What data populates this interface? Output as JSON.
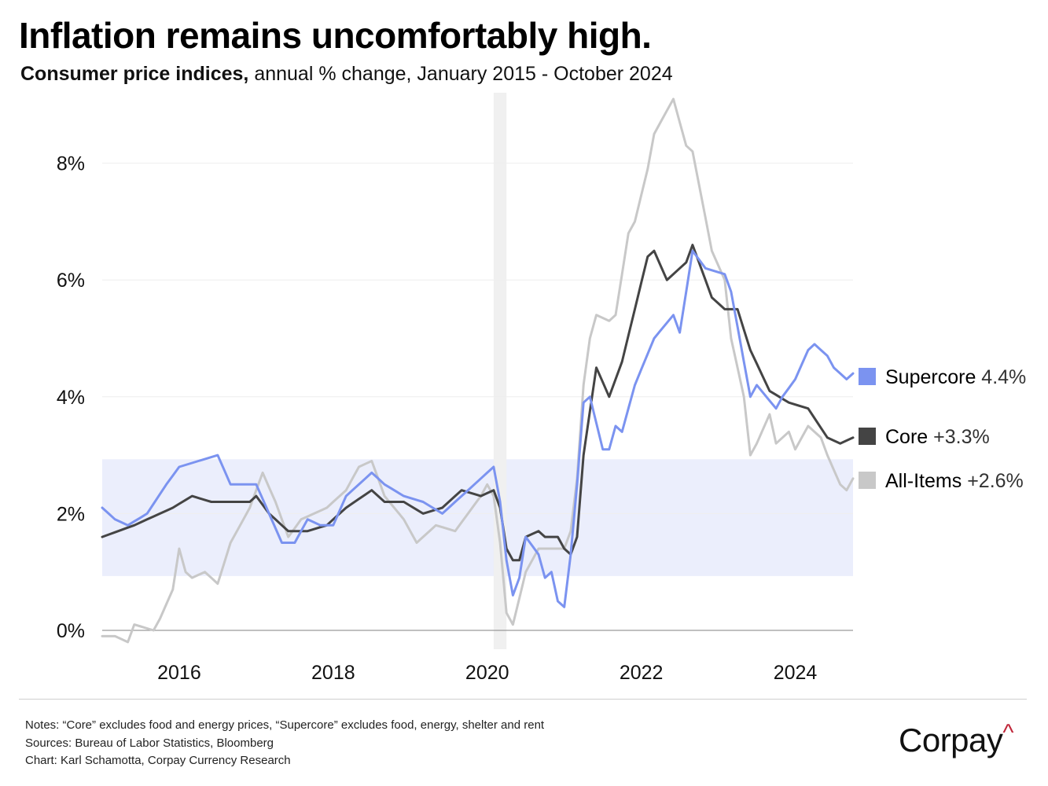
{
  "title": "Inflation remains uncomfortably high.",
  "subtitle": {
    "lead": "Consumer price indices,",
    "rest": " annual % change, January 2015 - October 2024"
  },
  "colors": {
    "supercore": "#7b93f0",
    "core": "#444444",
    "all_items": "#c8c8c8",
    "band": "#ebeefc",
    "recession": "#f0f0f0",
    "brand_accent": "#c0273a"
  },
  "legend": [
    {
      "name": "Supercore",
      "value": "4.4%",
      "color": "#7b93f0"
    },
    {
      "name": "Core",
      "value": "+3.3%",
      "color": "#444444"
    },
    {
      "name": "All-Items",
      "value": "+2.6%",
      "color": "#c8c8c8"
    }
  ],
  "notes": {
    "line1": "Notes: “Core” excludes food and energy prices, “Supercore” excludes food, energy, shelter and rent",
    "line2": "Sources: Bureau of Labor Statistics, Bloomberg",
    "line3": "Chart: Karl Schamotta, Corpay Currency Research"
  },
  "brand": {
    "name": "Corpay",
    "mark": "^"
  },
  "chart_data": {
    "type": "line",
    "x_start": "2015-01",
    "x_end": "2024-10",
    "frequency": "monthly",
    "yticks": [
      0,
      2,
      4,
      6,
      8
    ],
    "ytick_labels": [
      "0%",
      "2%",
      "4%",
      "6%",
      "8%"
    ],
    "ylim": [
      -0.2,
      9.0
    ],
    "xticks": [
      2016,
      2018,
      2020,
      2022,
      2024
    ],
    "xtick_labels": [
      "2016",
      "2018",
      "2020",
      "2022",
      "2024"
    ],
    "grid": true,
    "legend_position": "right",
    "shaded_band": {
      "y_from": 0.93,
      "y_to": 2.93
    },
    "shaded_period": {
      "from": "2020-02",
      "to": "2020-04"
    },
    "series": [
      {
        "name": "Supercore",
        "anchor_points": [
          [
            "2015-01",
            2.1
          ],
          [
            "2015-03",
            1.9
          ],
          [
            "2015-05",
            1.8
          ],
          [
            "2015-08",
            2.0
          ],
          [
            "2015-11",
            2.5
          ],
          [
            "2016-01",
            2.8
          ],
          [
            "2016-04",
            2.9
          ],
          [
            "2016-07",
            3.0
          ],
          [
            "2016-09",
            2.5
          ],
          [
            "2016-11",
            2.5
          ],
          [
            "2017-01",
            2.5
          ],
          [
            "2017-03",
            2.0
          ],
          [
            "2017-05",
            1.5
          ],
          [
            "2017-07",
            1.5
          ],
          [
            "2017-09",
            1.9
          ],
          [
            "2017-11",
            1.8
          ],
          [
            "2018-01",
            1.8
          ],
          [
            "2018-03",
            2.3
          ],
          [
            "2018-07",
            2.7
          ],
          [
            "2018-09",
            2.5
          ],
          [
            "2018-12",
            2.3
          ],
          [
            "2019-03",
            2.2
          ],
          [
            "2019-06",
            2.0
          ],
          [
            "2019-09",
            2.3
          ],
          [
            "2019-12",
            2.6
          ],
          [
            "2020-02",
            2.8
          ],
          [
            "2020-03",
            2.2
          ],
          [
            "2020-04",
            1.2
          ],
          [
            "2020-05",
            0.6
          ],
          [
            "2020-06",
            0.9
          ],
          [
            "2020-07",
            1.6
          ],
          [
            "2020-09",
            1.3
          ],
          [
            "2020-10",
            0.9
          ],
          [
            "2020-11",
            1.0
          ],
          [
            "2020-12",
            0.5
          ],
          [
            "2021-01",
            0.4
          ],
          [
            "2021-02",
            1.3
          ],
          [
            "2021-03",
            2.5
          ],
          [
            "2021-04",
            3.9
          ],
          [
            "2021-05",
            4.0
          ],
          [
            "2021-07",
            3.1
          ],
          [
            "2021-08",
            3.1
          ],
          [
            "2021-09",
            3.5
          ],
          [
            "2021-10",
            3.4
          ],
          [
            "2021-12",
            4.2
          ],
          [
            "2022-03",
            5.0
          ],
          [
            "2022-06",
            5.4
          ],
          [
            "2022-07",
            5.1
          ],
          [
            "2022-09",
            6.5
          ],
          [
            "2022-11",
            6.2
          ],
          [
            "2023-02",
            6.1
          ],
          [
            "2023-03",
            5.8
          ],
          [
            "2023-06",
            4.0
          ],
          [
            "2023-07",
            4.2
          ],
          [
            "2023-10",
            3.8
          ],
          [
            "2023-11",
            4.0
          ],
          [
            "2024-01",
            4.3
          ],
          [
            "2024-03",
            4.8
          ],
          [
            "2024-04",
            4.9
          ],
          [
            "2024-06",
            4.7
          ],
          [
            "2024-07",
            4.5
          ],
          [
            "2024-09",
            4.3
          ],
          [
            "2024-10",
            4.4
          ]
        ]
      },
      {
        "name": "Core",
        "anchor_points": [
          [
            "2015-01",
            1.6
          ],
          [
            "2015-06",
            1.8
          ],
          [
            "2015-12",
            2.1
          ],
          [
            "2016-03",
            2.3
          ],
          [
            "2016-06",
            2.2
          ],
          [
            "2016-09",
            2.2
          ],
          [
            "2016-12",
            2.2
          ],
          [
            "2017-01",
            2.3
          ],
          [
            "2017-03",
            2.0
          ],
          [
            "2017-06",
            1.7
          ],
          [
            "2017-09",
            1.7
          ],
          [
            "2017-12",
            1.8
          ],
          [
            "2018-03",
            2.1
          ],
          [
            "2018-07",
            2.4
          ],
          [
            "2018-09",
            2.2
          ],
          [
            "2018-12",
            2.2
          ],
          [
            "2019-03",
            2.0
          ],
          [
            "2019-06",
            2.1
          ],
          [
            "2019-09",
            2.4
          ],
          [
            "2019-12",
            2.3
          ],
          [
            "2020-02",
            2.4
          ],
          [
            "2020-03",
            2.1
          ],
          [
            "2020-04",
            1.4
          ],
          [
            "2020-05",
            1.2
          ],
          [
            "2020-06",
            1.2
          ],
          [
            "2020-07",
            1.6
          ],
          [
            "2020-09",
            1.7
          ],
          [
            "2020-10",
            1.6
          ],
          [
            "2020-11",
            1.6
          ],
          [
            "2020-12",
            1.6
          ],
          [
            "2021-01",
            1.4
          ],
          [
            "2021-02",
            1.3
          ],
          [
            "2021-03",
            1.6
          ],
          [
            "2021-04",
            3.0
          ],
          [
            "2021-06",
            4.5
          ],
          [
            "2021-08",
            4.0
          ],
          [
            "2021-10",
            4.6
          ],
          [
            "2021-12",
            5.5
          ],
          [
            "2022-02",
            6.4
          ],
          [
            "2022-03",
            6.5
          ],
          [
            "2022-05",
            6.0
          ],
          [
            "2022-08",
            6.3
          ],
          [
            "2022-09",
            6.6
          ],
          [
            "2022-12",
            5.7
          ],
          [
            "2023-02",
            5.5
          ],
          [
            "2023-04",
            5.5
          ],
          [
            "2023-06",
            4.8
          ],
          [
            "2023-09",
            4.1
          ],
          [
            "2023-12",
            3.9
          ],
          [
            "2024-03",
            3.8
          ],
          [
            "2024-06",
            3.3
          ],
          [
            "2024-08",
            3.2
          ],
          [
            "2024-10",
            3.3
          ]
        ]
      },
      {
        "name": "All-Items",
        "anchor_points": [
          [
            "2015-01",
            -0.1
          ],
          [
            "2015-03",
            -0.1
          ],
          [
            "2015-05",
            -0.2
          ],
          [
            "2015-06",
            0.1
          ],
          [
            "2015-09",
            0.0
          ],
          [
            "2015-10",
            0.2
          ],
          [
            "2015-12",
            0.7
          ],
          [
            "2016-01",
            1.4
          ],
          [
            "2016-02",
            1.0
          ],
          [
            "2016-03",
            0.9
          ],
          [
            "2016-05",
            1.0
          ],
          [
            "2016-07",
            0.8
          ],
          [
            "2016-09",
            1.5
          ],
          [
            "2016-12",
            2.1
          ],
          [
            "2017-02",
            2.7
          ],
          [
            "2017-04",
            2.2
          ],
          [
            "2017-06",
            1.6
          ],
          [
            "2017-08",
            1.9
          ],
          [
            "2017-10",
            2.0
          ],
          [
            "2017-12",
            2.1
          ],
          [
            "2018-03",
            2.4
          ],
          [
            "2018-05",
            2.8
          ],
          [
            "2018-07",
            2.9
          ],
          [
            "2018-09",
            2.3
          ],
          [
            "2018-12",
            1.9
          ],
          [
            "2019-02",
            1.5
          ],
          [
            "2019-05",
            1.8
          ],
          [
            "2019-08",
            1.7
          ],
          [
            "2019-12",
            2.3
          ],
          [
            "2020-01",
            2.5
          ],
          [
            "2020-02",
            2.3
          ],
          [
            "2020-03",
            1.5
          ],
          [
            "2020-04",
            0.3
          ],
          [
            "2020-05",
            0.1
          ],
          [
            "2020-07",
            1.0
          ],
          [
            "2020-09",
            1.4
          ],
          [
            "2020-12",
            1.4
          ],
          [
            "2021-01",
            1.4
          ],
          [
            "2021-02",
            1.7
          ],
          [
            "2021-03",
            2.6
          ],
          [
            "2021-04",
            4.2
          ],
          [
            "2021-05",
            5.0
          ],
          [
            "2021-06",
            5.4
          ],
          [
            "2021-08",
            5.3
          ],
          [
            "2021-09",
            5.4
          ],
          [
            "2021-11",
            6.8
          ],
          [
            "2021-12",
            7.0
          ],
          [
            "2022-02",
            7.9
          ],
          [
            "2022-03",
            8.5
          ],
          [
            "2022-06",
            9.1
          ],
          [
            "2022-08",
            8.3
          ],
          [
            "2022-09",
            8.2
          ],
          [
            "2022-12",
            6.5
          ],
          [
            "2023-02",
            6.0
          ],
          [
            "2023-03",
            5.0
          ],
          [
            "2023-05",
            4.0
          ],
          [
            "2023-06",
            3.0
          ],
          [
            "2023-07",
            3.2
          ],
          [
            "2023-09",
            3.7
          ],
          [
            "2023-10",
            3.2
          ],
          [
            "2023-12",
            3.4
          ],
          [
            "2024-01",
            3.1
          ],
          [
            "2024-03",
            3.5
          ],
          [
            "2024-05",
            3.3
          ],
          [
            "2024-06",
            3.0
          ],
          [
            "2024-08",
            2.5
          ],
          [
            "2024-09",
            2.4
          ],
          [
            "2024-10",
            2.6
          ]
        ]
      }
    ]
  }
}
